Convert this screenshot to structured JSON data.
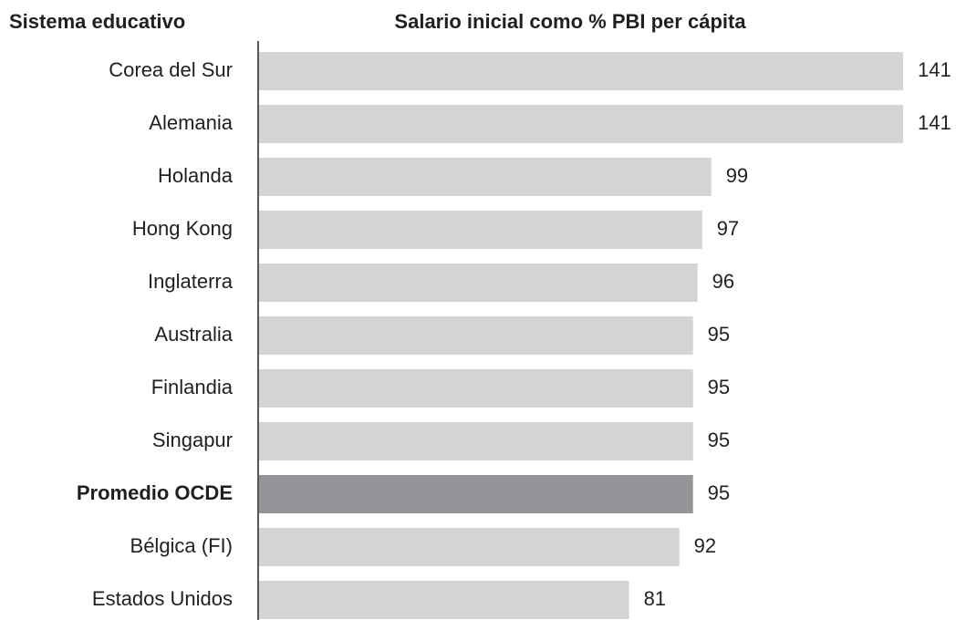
{
  "chart_data": {
    "type": "bar",
    "orientation": "horizontal",
    "category_axis_label": "Sistema educativo",
    "title": "Salario inicial como % PBI per cápita",
    "categories": [
      "Corea del Sur",
      "Alemania",
      "Holanda",
      "Hong Kong",
      "Inglaterra",
      "Australia",
      "Finlandia",
      "Singapur",
      "Promedio OCDE",
      "Bélgica (FI)",
      "Estados Unidos"
    ],
    "values": [
      141,
      141,
      99,
      97,
      96,
      95,
      95,
      95,
      95,
      92,
      81
    ],
    "colors": [
      "#d4d4d6",
      "#d4d4d6",
      "#d4d4d6",
      "#d4d4d6",
      "#d4d4d6",
      "#d4d4d6",
      "#d4d4d6",
      "#d4d4d6",
      "#939598",
      "#d4d4d6",
      "#d4d4d6"
    ],
    "highlight_color": "#939598"
  }
}
